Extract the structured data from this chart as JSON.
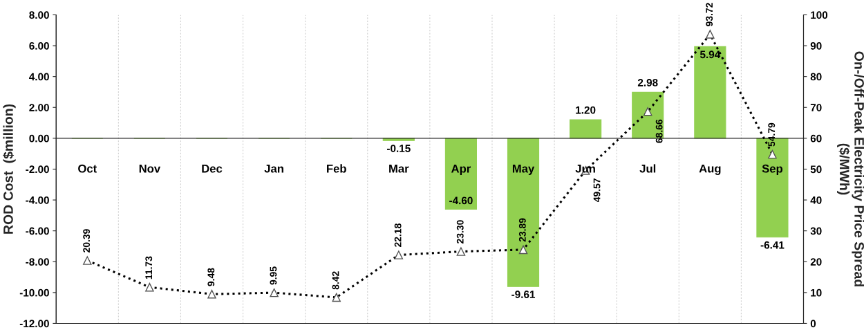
{
  "chart_data": {
    "type": "bar",
    "ylabel": "ROD Cost  ($million)",
    "y2label": "On-/Off-Peak Electricity Price Spread\n($/MWh)",
    "categories": [
      "Oct",
      "Nov",
      "Dec",
      "Jan",
      "Feb",
      "Mar",
      "Apr",
      "May",
      "Jun",
      "Jul",
      "Aug",
      "Sep"
    ],
    "series": [
      {
        "color": "#92d050",
        "values": [
          0,
          0,
          0,
          0,
          0,
          -0.15,
          -4.6,
          -9.61,
          1.2,
          2.98,
          5.94,
          -6.41
        ],
        "value_labels": [
          null,
          null,
          null,
          null,
          null,
          "-0.15",
          "-4.60",
          "-9.61",
          "1.20",
          "2.98",
          "5.94",
          "-6.41"
        ]
      },
      {
        "type": "line",
        "axis": "y2",
        "color": "#000000",
        "marker": "triangle",
        "line_style": "dotted",
        "values": [
          20.39,
          11.73,
          9.48,
          9.95,
          8.42,
          22.18,
          23.3,
          23.89,
          49.57,
          68.66,
          93.72,
          54.79
        ],
        "value_labels": [
          "20.39",
          "11.73",
          "9.48",
          "9.95",
          "8.42",
          "22.18",
          "23.30",
          "23.89",
          "49.57",
          "68.66",
          "93.72",
          "54.79"
        ]
      }
    ],
    "ylim": [
      -12,
      8
    ],
    "yticks": [
      {
        "value": -12,
        "label": "-12.00"
      },
      {
        "value": -10,
        "label": "-10.00"
      },
      {
        "value": -8,
        "label": "-8.00"
      },
      {
        "value": -6,
        "label": "-6.00"
      },
      {
        "value": -4,
        "label": "-4.00"
      },
      {
        "value": -2,
        "label": "-2.00"
      },
      {
        "value": 0,
        "label": "0.00"
      },
      {
        "value": 2,
        "label": "2.00"
      },
      {
        "value": 4,
        "label": "4.00"
      },
      {
        "value": 6,
        "label": "6.00"
      },
      {
        "value": 8,
        "label": "8.00"
      }
    ],
    "y2lim": [
      0,
      100
    ],
    "y2ticks": [
      0,
      10,
      20,
      30,
      40,
      50,
      60,
      70,
      80,
      90,
      100
    ],
    "grid": "x",
    "legend": false
  }
}
